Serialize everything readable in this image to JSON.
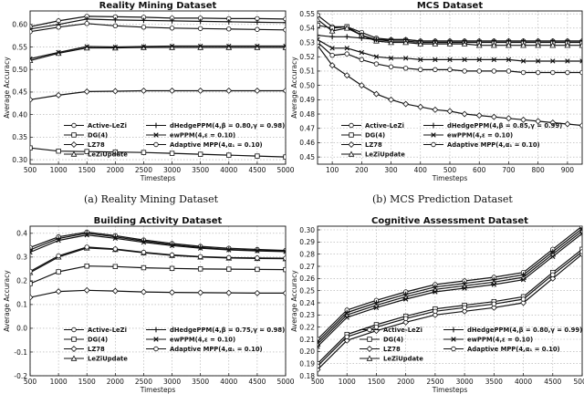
{
  "chart_data": [
    {
      "type": "line",
      "title": "Reality Mining Dataset",
      "xlabel": "Timesteps",
      "ylabel": "Average Accuracy",
      "x": [
        500,
        1000,
        1500,
        2000,
        2500,
        3000,
        3500,
        4000,
        4500,
        5000
      ],
      "xticks": [
        "500",
        "1000",
        "1500",
        "2000",
        "2500",
        "3000",
        "3500",
        "4000",
        "4500",
        "5000"
      ],
      "yticks": [
        "0.30",
        "0.35",
        "0.40",
        "0.45",
        "0.50",
        "0.55",
        "0.60"
      ],
      "xlim": [
        500,
        5000
      ],
      "ylim": [
        0.29,
        0.63
      ],
      "grid": true,
      "legend_position": "bottom",
      "caption": "(a) Reality Mining Dataset",
      "series": [
        {
          "name": "Active-LeZi",
          "values": [
            0.595,
            0.608,
            0.618,
            0.617,
            0.616,
            0.614,
            0.614,
            0.613,
            0.613,
            0.612
          ]
        },
        {
          "name": "DG(4)",
          "values": [
            0.326,
            0.319,
            0.318,
            0.317,
            0.316,
            0.314,
            0.312,
            0.31,
            0.308,
            0.306
          ]
        },
        {
          "name": "LZ78",
          "values": [
            0.433,
            0.443,
            0.451,
            0.452,
            0.453,
            0.453,
            0.453,
            0.453,
            0.453,
            0.453
          ]
        },
        {
          "name": "LeZiUpdate",
          "values": [
            0.52,
            0.536,
            0.548,
            0.548,
            0.549,
            0.549,
            0.549,
            0.549,
            0.549,
            0.549
          ]
        },
        {
          "name": "dHedgePPM(4,β = 0.80,γ = 0.98)",
          "values": [
            0.59,
            0.6,
            0.612,
            0.61,
            0.609,
            0.608,
            0.607,
            0.606,
            0.605,
            0.604
          ]
        },
        {
          "name": "ewPPM(4,ε = 0.10)",
          "values": [
            0.524,
            0.538,
            0.551,
            0.55,
            0.551,
            0.552,
            0.552,
            0.552,
            0.552,
            0.552
          ]
        },
        {
          "name": "Adaptive MPP(4,α₁ = 0.10)",
          "values": [
            0.584,
            0.594,
            0.602,
            0.597,
            0.594,
            0.592,
            0.591,
            0.59,
            0.589,
            0.588
          ]
        }
      ]
    },
    {
      "type": "line",
      "title": "MCS Dataset",
      "xlabel": "Timesteps",
      "ylabel": "Average Accuracy",
      "x": [
        50,
        100,
        150,
        200,
        250,
        300,
        350,
        400,
        450,
        500,
        550,
        600,
        650,
        700,
        750,
        800,
        850,
        900,
        950
      ],
      "xticks": [
        "100",
        "200",
        "300",
        "400",
        "500",
        "600",
        "700",
        "800",
        "900"
      ],
      "yticks": [
        "0.45",
        "0.46",
        "0.47",
        "0.48",
        "0.49",
        "0.50",
        "0.51",
        "0.52",
        "0.53",
        "0.54",
        "0.55"
      ],
      "xlim": [
        50,
        950
      ],
      "ylim": [
        0.445,
        0.552
      ],
      "grid": true,
      "legend_position": "lower-left",
      "caption": "(b) MCS Prediction Dataset",
      "series": [
        {
          "name": "Active-LeZi",
          "values": [
            0.549,
            0.541,
            0.541,
            0.537,
            0.533,
            0.532,
            0.532,
            0.531,
            0.531,
            0.531,
            0.531,
            0.531,
            0.531,
            0.531,
            0.531,
            0.531,
            0.531,
            0.531,
            0.531
          ]
        },
        {
          "name": "DG(4)",
          "values": [
            0.542,
            0.54,
            0.541,
            0.535,
            0.532,
            0.531,
            0.531,
            0.53,
            0.53,
            0.53,
            0.53,
            0.53,
            0.53,
            0.53,
            0.53,
            0.53,
            0.53,
            0.53,
            0.53
          ]
        },
        {
          "name": "LZ78",
          "values": [
            0.528,
            0.514,
            0.507,
            0.5,
            0.494,
            0.49,
            0.487,
            0.485,
            0.483,
            0.482,
            0.48,
            0.479,
            0.478,
            0.477,
            0.476,
            0.475,
            0.474,
            0.473,
            0.472
          ]
        },
        {
          "name": "LeZiUpdate",
          "values": [
            0.546,
            0.538,
            0.54,
            0.535,
            0.531,
            0.53,
            0.53,
            0.529,
            0.529,
            0.529,
            0.529,
            0.528,
            0.528,
            0.528,
            0.528,
            0.528,
            0.528,
            0.528,
            0.528
          ]
        },
        {
          "name": "dHedgePPM(4,β = 0.85,γ = 0.99)",
          "values": [
            0.535,
            0.534,
            0.534,
            0.533,
            0.532,
            0.532,
            0.532,
            0.531,
            0.531,
            0.531,
            0.531,
            0.531,
            0.531,
            0.531,
            0.531,
            0.531,
            0.531,
            0.531,
            0.531
          ]
        },
        {
          "name": "ewPPM(4,ε = 0.10)",
          "values": [
            0.532,
            0.526,
            0.526,
            0.523,
            0.52,
            0.519,
            0.519,
            0.518,
            0.518,
            0.518,
            0.518,
            0.518,
            0.518,
            0.518,
            0.517,
            0.517,
            0.517,
            0.517,
            0.517
          ]
        },
        {
          "name": "Adaptive MPP(4,α₁ = 0.10)",
          "values": [
            0.53,
            0.521,
            0.522,
            0.518,
            0.515,
            0.513,
            0.512,
            0.511,
            0.511,
            0.511,
            0.51,
            0.51,
            0.51,
            0.51,
            0.509,
            0.509,
            0.509,
            0.509,
            0.509
          ]
        }
      ]
    },
    {
      "type": "line",
      "title": "Building Activity Dataset",
      "xlabel": "Timesteps",
      "ylabel": "Average Accuracy",
      "x": [
        500,
        1000,
        1500,
        2000,
        2500,
        3000,
        3500,
        4000,
        4500,
        5000
      ],
      "xticks": [
        "500",
        "1000",
        "1500",
        "2000",
        "2500",
        "3000",
        "3500",
        "4000",
        "4500",
        "5000"
      ],
      "yticks": [
        "-0.2",
        "-0.1",
        "0.0",
        "0.1",
        "0.2",
        "0.3",
        "0.4"
      ],
      "xlim": [
        500,
        5000
      ],
      "ylim": [
        -0.2,
        0.43
      ],
      "grid": true,
      "legend_position": "lower-left",
      "series": [
        {
          "name": "Active-LeZi",
          "values": [
            0.34,
            0.385,
            0.405,
            0.39,
            0.372,
            0.357,
            0.345,
            0.337,
            0.332,
            0.328
          ]
        },
        {
          "name": "DG(4)",
          "values": [
            0.188,
            0.238,
            0.262,
            0.26,
            0.255,
            0.252,
            0.25,
            0.249,
            0.248,
            0.247
          ]
        },
        {
          "name": "LZ78",
          "values": [
            0.13,
            0.155,
            0.16,
            0.157,
            0.153,
            0.151,
            0.15,
            0.149,
            0.148,
            0.148
          ]
        },
        {
          "name": "LeZiUpdate",
          "values": [
            0.235,
            0.3,
            0.338,
            0.332,
            0.318,
            0.307,
            0.3,
            0.296,
            0.294,
            0.293
          ]
        },
        {
          "name": "dHedgePPM(4,β = 0.75,γ = 0.98)",
          "values": [
            0.33,
            0.378,
            0.4,
            0.385,
            0.367,
            0.352,
            0.34,
            0.332,
            0.328,
            0.325
          ]
        },
        {
          "name": "ewPPM(4,ε = 0.10)",
          "values": [
            0.32,
            0.37,
            0.393,
            0.379,
            0.362,
            0.348,
            0.337,
            0.33,
            0.326,
            0.323
          ]
        },
        {
          "name": "Adaptive MPP(4,α₁ = 0.10)",
          "values": [
            0.24,
            0.305,
            0.342,
            0.334,
            0.32,
            0.309,
            0.302,
            0.298,
            0.296,
            0.295
          ]
        }
      ]
    },
    {
      "type": "line",
      "title": "Cognitive Assessment Dataset",
      "xlabel": "Timesteps",
      "ylabel": "Average Accuracy",
      "x": [
        500,
        1000,
        1500,
        2000,
        2500,
        3000,
        3500,
        4000,
        4500,
        5000
      ],
      "xticks": [
        "500",
        "1000",
        "1500",
        "2000",
        "2500",
        "3000",
        "3500",
        "4000",
        "4500",
        "5000"
      ],
      "yticks": [
        "0.18",
        "0.19",
        "0.20",
        "0.21",
        "0.22",
        "0.23",
        "0.24",
        "0.25",
        "0.26",
        "0.27",
        "0.28",
        "0.29",
        "0.30"
      ],
      "xlim": [
        500,
        5000
      ],
      "ylim": [
        0.18,
        0.303
      ],
      "grid": true,
      "legend_position": "lower-right",
      "series": [
        {
          "name": "Active-LeZi",
          "values": [
            0.21,
            0.234,
            0.242,
            0.249,
            0.255,
            0.258,
            0.261,
            0.265,
            0.284,
            0.303
          ]
        },
        {
          "name": "DG(4)",
          "values": [
            0.19,
            0.214,
            0.222,
            0.229,
            0.235,
            0.238,
            0.241,
            0.245,
            0.265,
            0.284
          ]
        },
        {
          "name": "LZ78",
          "values": [
            0.185,
            0.209,
            0.217,
            0.224,
            0.23,
            0.233,
            0.236,
            0.24,
            0.26,
            0.28
          ]
        },
        {
          "name": "LeZiUpdate",
          "values": [
            0.206,
            0.23,
            0.238,
            0.245,
            0.251,
            0.254,
            0.257,
            0.261,
            0.28,
            0.299
          ]
        },
        {
          "name": "dHedgePPM(4,β = 0.80,γ = 0.99)",
          "values": [
            0.208,
            0.232,
            0.24,
            0.247,
            0.253,
            0.256,
            0.259,
            0.263,
            0.282,
            0.301
          ]
        },
        {
          "name": "ewPPM(4,ε = 0.10)",
          "values": [
            0.204,
            0.228,
            0.236,
            0.243,
            0.249,
            0.252,
            0.255,
            0.259,
            0.278,
            0.297
          ]
        },
        {
          "name": "Adaptive MPP(4,α₁ = 0.10)",
          "values": [
            0.188,
            0.212,
            0.22,
            0.227,
            0.233,
            0.236,
            0.239,
            0.243,
            0.263,
            0.282
          ]
        }
      ]
    }
  ]
}
